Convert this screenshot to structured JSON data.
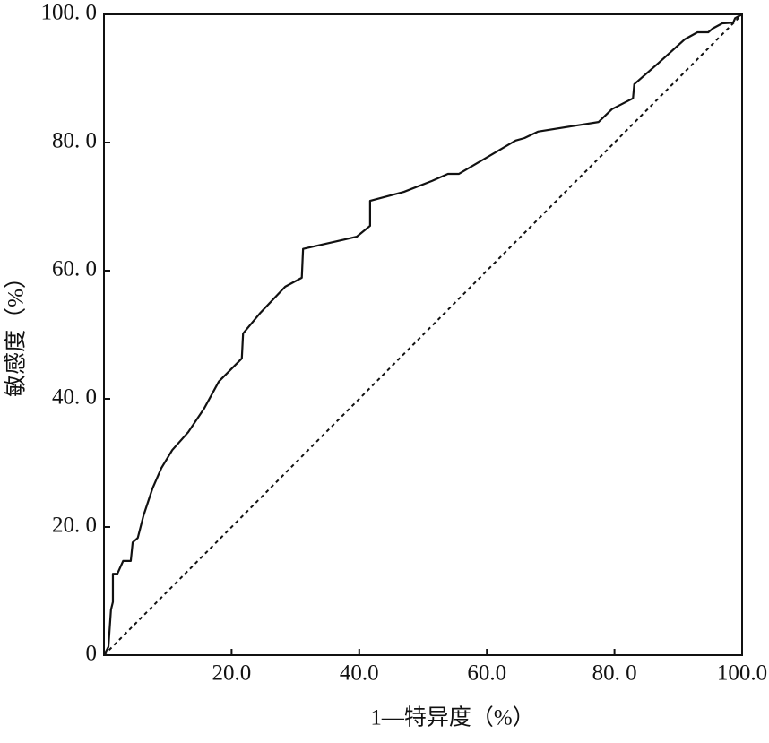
{
  "chart_data": {
    "type": "line",
    "x_label": "1—特异度（%）",
    "y_label": "敏感度（%）",
    "xlim": [
      0,
      100
    ],
    "ylim": [
      0,
      100
    ],
    "xticks": [
      {
        "value": 20,
        "label": "20.0"
      },
      {
        "value": 40,
        "label": "40.0"
      },
      {
        "value": 60,
        "label": "60.0"
      },
      {
        "value": 80,
        "label": "80. 0"
      },
      {
        "value": 100,
        "label": "100.0"
      }
    ],
    "yticks": [
      {
        "value": 0,
        "label": "0"
      },
      {
        "value": 20,
        "label": "20. 0"
      },
      {
        "value": 40,
        "label": "40. 0"
      },
      {
        "value": 60,
        "label": "60. 0"
      },
      {
        "value": 80,
        "label": "80. 0"
      },
      {
        "value": 100,
        "label": "100. 0"
      }
    ],
    "reference_diagonal": true,
    "series": [
      {
        "color": "#111111",
        "x": [
          0,
          0.7,
          1.1,
          1.4,
          1.4,
          2.1,
          3.0,
          4.2,
          4.5,
          5.3,
          6.2,
          7.6,
          9.0,
          10.7,
          13.2,
          15.7,
          18.0,
          21.6,
          21.8,
          24.4,
          28.4,
          31.0,
          31.2,
          39.6,
          41.7,
          41.7,
          47.0,
          51.4,
          53.9,
          55.6,
          64.5,
          65.9,
          68.0,
          77.5,
          79.6,
          82.9,
          83.1,
          86.9,
          91.0,
          93.0,
          94.7,
          95.4,
          96.9,
          98.6,
          98.9,
          100
        ],
        "values": [
          0,
          1.3,
          7.1,
          8.3,
          12.7,
          12.7,
          14.7,
          14.7,
          17.6,
          18.3,
          21.8,
          26.0,
          29.2,
          32.0,
          34.8,
          38.5,
          42.7,
          46.3,
          50.2,
          53.3,
          57.5,
          58.9,
          63.4,
          65.3,
          67.0,
          70.9,
          72.3,
          74.0,
          75.1,
          75.1,
          80.3,
          80.7,
          81.7,
          83.2,
          85.2,
          86.9,
          89.1,
          92.4,
          96.1,
          97.2,
          97.2,
          97.8,
          98.6,
          98.7,
          99.4,
          100
        ]
      }
    ]
  }
}
